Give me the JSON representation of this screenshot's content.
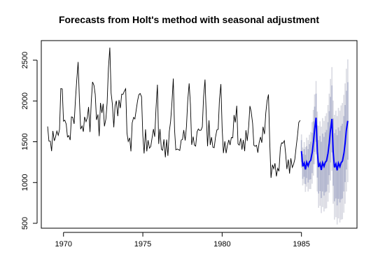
{
  "chart_data": {
    "type": "line",
    "title": "Forecasts from Holt's method with seasonal adjustment",
    "xlabel": "",
    "ylabel": "",
    "xlim": [
      1968.6,
      1988.5
    ],
    "ylim": [
      440,
      2740
    ],
    "x_ticks": [
      1970,
      1975,
      1980,
      1985
    ],
    "x_tick_labels": [
      "1970",
      "1975",
      "1980",
      "1985"
    ],
    "y_ticks": [
      500,
      1000,
      1500,
      2000,
      2500
    ],
    "y_tick_labels": [
      "500",
      "1000",
      "1500",
      "2000",
      "2500"
    ],
    "grid": false,
    "legend": "none",
    "series": [
      {
        "role": "observed",
        "color": "#000000",
        "x": [
          1969.0,
          1969.08,
          1969.17,
          1969.25,
          1969.33,
          1969.42,
          1969.5,
          1969.58,
          1969.67,
          1969.75,
          1969.83,
          1969.92,
          1970.0,
          1970.08,
          1970.17,
          1970.25,
          1970.33,
          1970.42,
          1970.5,
          1970.58,
          1970.67,
          1970.75,
          1970.83,
          1970.92,
          1971.0,
          1971.08,
          1971.17,
          1971.25,
          1971.33,
          1971.42,
          1971.5,
          1971.58,
          1971.67,
          1971.75,
          1971.83,
          1971.92,
          1972.0,
          1972.08,
          1972.17,
          1972.25,
          1972.33,
          1972.42,
          1972.5,
          1972.58,
          1972.67,
          1972.75,
          1972.83,
          1972.92,
          1973.0,
          1973.08,
          1973.17,
          1973.25,
          1973.33,
          1973.42,
          1973.5,
          1973.58,
          1973.67,
          1973.75,
          1973.83,
          1973.92,
          1974.0,
          1974.08,
          1974.17,
          1974.25,
          1974.33,
          1974.42,
          1974.5,
          1974.58,
          1974.67,
          1974.75,
          1974.83,
          1974.92,
          1975.0,
          1975.08,
          1975.17,
          1975.25,
          1975.33,
          1975.42,
          1975.5,
          1975.58,
          1975.67,
          1975.75,
          1975.83,
          1975.92,
          1976.0,
          1976.08,
          1976.17,
          1976.25,
          1976.33,
          1976.42,
          1976.5,
          1976.58,
          1976.67,
          1976.75,
          1976.83,
          1976.92,
          1977.0,
          1977.08,
          1977.17,
          1977.25,
          1977.33,
          1977.42,
          1977.5,
          1977.58,
          1977.67,
          1977.75,
          1977.83,
          1977.92,
          1978.0,
          1978.08,
          1978.17,
          1978.25,
          1978.33,
          1978.42,
          1978.5,
          1978.58,
          1978.67,
          1978.75,
          1978.83,
          1978.92,
          1979.0,
          1979.08,
          1979.17,
          1979.25,
          1979.33,
          1979.42,
          1979.5,
          1979.58,
          1979.67,
          1979.75,
          1979.83,
          1979.92,
          1980.0,
          1980.08,
          1980.17,
          1980.25,
          1980.33,
          1980.42,
          1980.5,
          1980.58,
          1980.67,
          1980.75,
          1980.83,
          1980.92,
          1981.0,
          1981.08,
          1981.17,
          1981.25,
          1981.33,
          1981.42,
          1981.5,
          1981.58,
          1981.67,
          1981.75,
          1981.83,
          1981.92,
          1982.0,
          1982.08,
          1982.17,
          1982.25,
          1982.33,
          1982.42,
          1982.5,
          1982.58,
          1982.67,
          1982.75,
          1982.83,
          1982.92,
          1983.0,
          1983.08,
          1983.17,
          1983.25,
          1983.33,
          1983.42,
          1983.5,
          1983.58,
          1983.67,
          1983.75,
          1983.83,
          1983.92,
          1984.0,
          1984.08,
          1984.17,
          1984.25,
          1984.33,
          1984.42,
          1984.5,
          1984.58,
          1984.67,
          1984.75,
          1984.83,
          1984.92
        ],
        "y": [
          1687,
          1508,
          1507,
          1385,
          1632,
          1511,
          1559,
          1630,
          1579,
          1653,
          2152,
          2148,
          1752,
          1765,
          1717,
          1558,
          1575,
          1520,
          1805,
          1800,
          1719,
          2008,
          2242,
          2478,
          2030,
          1655,
          1693,
          1623,
          1805,
          1746,
          1795,
          1926,
          1619,
          1992,
          2233,
          2192,
          2080,
          1768,
          1835,
          1569,
          1976,
          1853,
          1965,
          1689,
          1778,
          1976,
          2397,
          2654,
          2097,
          1963,
          1677,
          1941,
          2003,
          1813,
          2012,
          1912,
          2084,
          2080,
          2118,
          2150,
          1608,
          1503,
          1548,
          1382,
          1731,
          1798,
          1779,
          1887,
          2004,
          2077,
          2092,
          2051,
          1577,
          1356,
          1652,
          1382,
          1519,
          1421,
          1442,
          1543,
          1656,
          1561,
          1905,
          2199,
          1473,
          1655,
          1407,
          1395,
          1530,
          1309,
          1526,
          1327,
          1627,
          1748,
          1958,
          2274,
          1648,
          1401,
          1411,
          1403,
          1394,
          1520,
          1528,
          1643,
          1515,
          1685,
          2000,
          2215,
          1956,
          1462,
          1563,
          1459,
          1446,
          1622,
          1657,
          1638,
          1643,
          1683,
          2050,
          2262,
          1813,
          1445,
          1762,
          1461,
          1556,
          1431,
          1427,
          1554,
          1645,
          1653,
          2016,
          2207,
          1665,
          1361,
          1506,
          1360,
          1453,
          1522,
          1460,
          1552,
          1548,
          1827,
          1737,
          1941,
          1474,
          1458,
          1542,
          1404,
          1522,
          1385,
          1641,
          1510,
          1681,
          1938,
          1868,
          1726,
          1456,
          1445,
          1456,
          1365,
          1487,
          1558,
          1488,
          1684,
          1594,
          1850,
          1998,
          2079,
          1494,
          1057,
          1218,
          1168,
          1236,
          1076,
          1174,
          1139,
          1427,
          1487,
          1483,
          1513,
          1357,
          1165,
          1282,
          1110,
          1297,
          1185,
          1222,
          1284,
          1444,
          1575,
          1737,
          1763
        ]
      },
      {
        "role": "forecast",
        "color": "#0000ff",
        "x": [
          1985.0,
          1985.08,
          1985.17,
          1985.25,
          1985.33,
          1985.42,
          1985.5,
          1985.58,
          1985.67,
          1985.75,
          1985.83,
          1985.92,
          1986.0,
          1986.08,
          1986.17,
          1986.25,
          1986.33,
          1986.42,
          1986.5,
          1986.58,
          1986.67,
          1986.75,
          1986.83,
          1986.92,
          1987.0,
          1987.08,
          1987.17,
          1987.25,
          1987.33,
          1987.42,
          1987.5,
          1987.58,
          1987.67,
          1987.75,
          1987.83,
          1987.92
        ],
        "y": [
          1385,
          1198,
          1239,
          1160,
          1249,
          1204,
          1253,
          1271,
          1362,
          1487,
          1652,
          1795,
          1378,
          1191,
          1233,
          1154,
          1243,
          1198,
          1248,
          1266,
          1357,
          1482,
          1647,
          1780,
          1372,
          1186,
          1228,
          1149,
          1238,
          1194,
          1244,
          1262,
          1353,
          1478,
          1643,
          1756
        ],
        "lower_80": [
          1250,
          1045,
          1070,
          980,
          1055,
          1000,
          1035,
          1040,
          1115,
          1225,
          1375,
          1500,
          1060,
          865,
          895,
          810,
          890,
          840,
          880,
          890,
          975,
          1090,
          1245,
          1370,
          960,
          770,
          805,
          720,
          800,
          755,
          795,
          805,
          890,
          1005,
          1160,
          1280
        ],
        "upper_80": [
          1520,
          1350,
          1410,
          1340,
          1445,
          1410,
          1470,
          1500,
          1610,
          1750,
          1930,
          2090,
          1700,
          1520,
          1570,
          1500,
          1600,
          1560,
          1615,
          1645,
          1740,
          1875,
          2050,
          2190,
          1785,
          1605,
          1650,
          1580,
          1675,
          1635,
          1695,
          1720,
          1815,
          1950,
          2125,
          2230
        ],
        "lower_95": [
          1180,
          965,
          985,
          885,
          950,
          890,
          920,
          920,
          985,
          1085,
          1225,
          1345,
          890,
          690,
          715,
          625,
          700,
          645,
          680,
          685,
          765,
          875,
          1025,
          1145,
          740,
          545,
          575,
          485,
          560,
          510,
          545,
          550,
          630,
          740,
          890,
          1005
        ],
        "upper_95": [
          1590,
          1430,
          1495,
          1435,
          1550,
          1520,
          1585,
          1620,
          1740,
          1890,
          2080,
          2245,
          1870,
          1695,
          1750,
          1685,
          1790,
          1755,
          1815,
          1850,
          1950,
          2090,
          2270,
          2415,
          2005,
          1830,
          1880,
          1815,
          1915,
          1880,
          1945,
          1975,
          2075,
          2215,
          2395,
          2510
        ]
      }
    ],
    "colors": {
      "band_80": "#b1b5ce",
      "band_95": "#dadbe3",
      "forecast_line": "#0000ff",
      "observed_line": "#000000"
    }
  }
}
